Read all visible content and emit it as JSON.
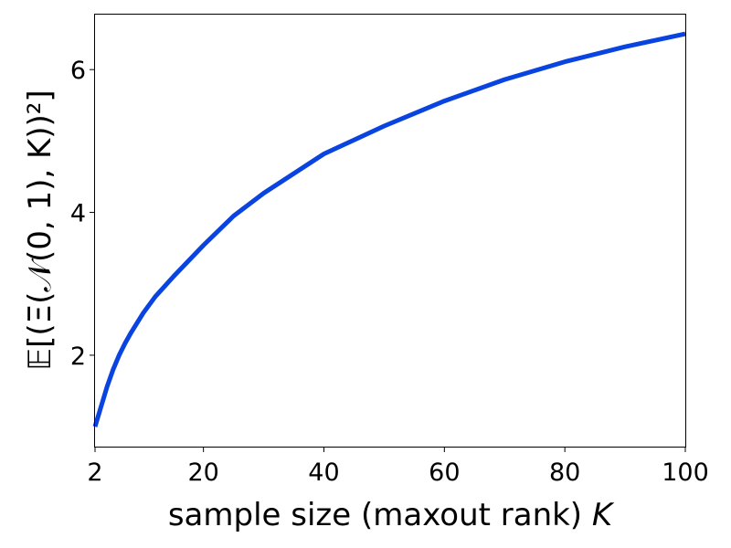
{
  "chart_data": {
    "type": "line",
    "title": "",
    "xlabel": "sample size (maxout rank) K",
    "ylabel": "𝔼[(Ξ(𝒩(0, 1), K))²]",
    "xlim": [
      2,
      100
    ],
    "ylim": [
      0.72,
      6.77
    ],
    "xticks": [
      2,
      20,
      40,
      60,
      80,
      100
    ],
    "yticks": [
      2,
      4,
      6
    ],
    "xtick_labels": [
      "2",
      "20",
      "40",
      "60",
      "80",
      "100"
    ],
    "ytick_labels": [
      "2",
      "4",
      "6"
    ],
    "grid": false,
    "legend": "none",
    "series": [
      {
        "color": "#0a44e0",
        "x": [
          2,
          3,
          4,
          5,
          6,
          7,
          8,
          10,
          12,
          15,
          20,
          25,
          30,
          40,
          50,
          60,
          70,
          80,
          90,
          100
        ],
        "y": [
          1.0,
          1.28,
          1.56,
          1.8,
          2.0,
          2.17,
          2.32,
          2.59,
          2.82,
          3.1,
          3.54,
          3.95,
          4.27,
          4.82,
          5.21,
          5.56,
          5.86,
          6.11,
          6.32,
          6.5
        ]
      }
    ]
  }
}
